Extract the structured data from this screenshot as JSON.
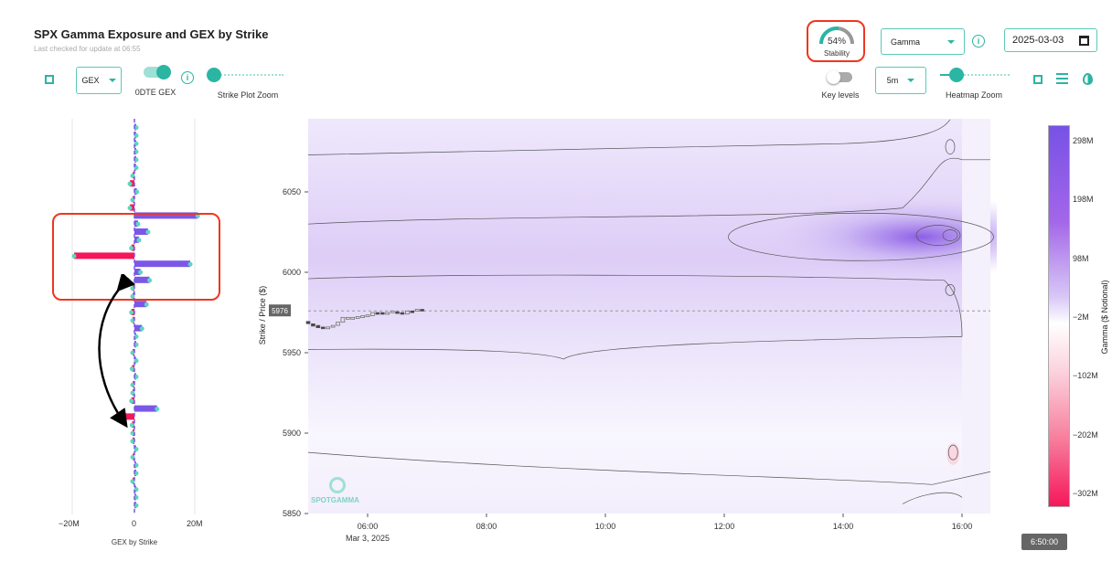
{
  "header": {
    "title": "SPX Gamma Exposure and GEX by Strike",
    "subtitle": "Last checked for update at 06:55"
  },
  "left_controls": {
    "mode_select": "GEX",
    "toggle_label": "0DTE GEX",
    "toggle_on": true,
    "slider_label": "Strike Plot Zoom",
    "slider_value": 0
  },
  "right_controls": {
    "stability_value": "54%",
    "stability_fraction": 0.54,
    "stability_label": "Stability",
    "metric_select": "Gamma",
    "date": "2025-03-03",
    "key_levels_label": "Key levels",
    "key_levels_on": false,
    "interval_select": "5m",
    "heatmap_zoom_label": "Heatmap Zoom",
    "heatmap_zoom_value": 0.25
  },
  "colors": {
    "accent": "#2bb5a3",
    "positive": "#7b57e8",
    "negative": "#f5175a",
    "highlight": "#f0361e"
  },
  "chart_data": [
    {
      "type": "bar",
      "title": "GEX by Strike",
      "xlabel": "GEX by Strike",
      "xlim": [
        -20000000,
        20000000
      ],
      "x_ticks": [
        "−20M",
        "0",
        "20M"
      ],
      "strikes": [
        6090,
        6085,
        6080,
        6075,
        6070,
        6065,
        6060,
        6055,
        6050,
        6045,
        6040,
        6035,
        6030,
        6025,
        6020,
        6015,
        6010,
        6005,
        6000,
        5995,
        5990,
        5985,
        5980,
        5975,
        5970,
        5965,
        5960,
        5955,
        5950,
        5945,
        5940,
        5935,
        5930,
        5925,
        5920,
        5915,
        5910,
        5905,
        5900,
        5895,
        5890,
        5885,
        5880,
        5875,
        5870,
        5865,
        5860,
        5855
      ],
      "values_m": [
        0,
        0.3,
        0,
        0,
        0,
        0.1,
        -0.3,
        -1.5,
        0.8,
        -0.5,
        -1.5,
        21,
        1.2,
        4.5,
        1.5,
        -1,
        -20,
        18.5,
        2,
        5,
        -0.2,
        -0.3,
        4,
        -1,
        -0.2,
        2.5,
        0,
        0.3,
        -0.2,
        0.5,
        -0.8,
        0.5,
        -0.3,
        -0.2,
        -1,
        7.5,
        -6,
        -0.8,
        -0.5,
        -0.2,
        0.3,
        -0.1,
        0,
        0.5,
        -0.1,
        0.3,
        0,
        0.2
      ]
    },
    {
      "type": "heatmap",
      "ylabel": "Strike / Price ($)",
      "y_ticks": [
        6050,
        6000,
        5950,
        5900,
        5850
      ],
      "ylim": [
        5850,
        6095
      ],
      "x_ticks": [
        "06:00",
        "08:00",
        "10:00",
        "12:00",
        "14:00",
        "16:00"
      ],
      "x_subtick": "Mar 3, 2025",
      "xlim_hours": [
        5,
        16.5
      ],
      "current_price": "5976",
      "cursor_time": "6:50:00",
      "colorbar": {
        "label": "Gamma ($ Notional)",
        "ticks": [
          "298M",
          "198M",
          "98M",
          "−2M",
          "−102M",
          "−202M",
          "−302M"
        ]
      },
      "candles": [
        [
          5969.5,
          5968
        ],
        [
          5968,
          5966.5
        ],
        [
          5967,
          5965.5
        ],
        [
          5966,
          5965
        ],
        [
          5965.5,
          5966
        ],
        [
          5966,
          5967
        ],
        [
          5967,
          5969
        ],
        [
          5969,
          5972
        ],
        [
          5971,
          5972
        ],
        [
          5971.5,
          5972
        ],
        [
          5972,
          5972.5
        ],
        [
          5972.5,
          5973
        ],
        [
          5973,
          5973.5
        ],
        [
          5973,
          5975
        ],
        [
          5975,
          5974
        ],
        [
          5975,
          5974.5
        ],
        [
          5974,
          5975
        ],
        [
          5975,
          5976
        ],
        [
          5975.5,
          5975
        ],
        [
          5975,
          5974
        ],
        [
          5974,
          5976
        ],
        [
          5976,
          5975
        ],
        [
          5976,
          5977
        ],
        [
          5977,
          5976.5
        ]
      ]
    }
  ],
  "watermark": "SPOTGAMMA"
}
